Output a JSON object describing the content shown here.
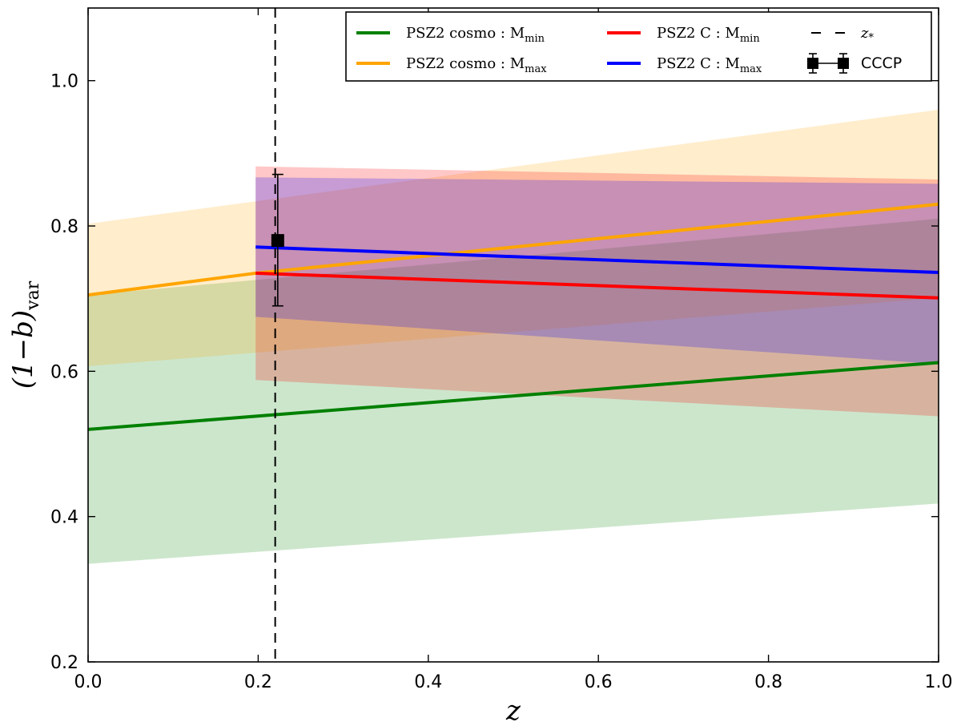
{
  "chart_data": {
    "type": "line",
    "title": "",
    "xlabel": "z",
    "ylabel": {
      "main": "(1−b)",
      "sub": "var"
    },
    "xlim": [
      0.0,
      1.0
    ],
    "ylim": [
      0.2,
      1.1
    ],
    "xticks": [
      0.0,
      0.2,
      0.4,
      0.6,
      0.8,
      1.0
    ],
    "xtick_labels": [
      "0.0",
      "0.2",
      "0.4",
      "0.6",
      "0.8",
      "1.0"
    ],
    "yticks": [
      0.2,
      0.4,
      0.6,
      0.8,
      1.0
    ],
    "ytick_labels": [
      "0.2",
      "0.4",
      "0.6",
      "0.8",
      "1.0"
    ],
    "grid": false,
    "bands": [
      {
        "name": "PSZ2 cosmo: M_min band",
        "color": "#008000",
        "opacity": 0.2,
        "x": [
          0.0,
          1.0
        ],
        "upper": [
          0.705,
          0.81
        ],
        "lower": [
          0.335,
          0.418
        ]
      },
      {
        "name": "PSZ2 cosmo: M_max band",
        "color": "#ffa500",
        "opacity": 0.2,
        "x": [
          0.0,
          1.0
        ],
        "upper": [
          0.803,
          0.96
        ],
        "lower": [
          0.607,
          0.701
        ]
      },
      {
        "name": "PSZ2 C: M_min band",
        "color": "#ff0000",
        "opacity": 0.22,
        "x": [
          0.197,
          1.0
        ],
        "upper": [
          0.882,
          0.864
        ],
        "lower": [
          0.588,
          0.538
        ]
      },
      {
        "name": "PSZ2 C: M_max band",
        "color": "#0000ff",
        "opacity": 0.22,
        "x": [
          0.197,
          1.0
        ],
        "upper": [
          0.867,
          0.858
        ],
        "lower": [
          0.675,
          0.61
        ]
      }
    ],
    "series": [
      {
        "name": "PSZ2 cosmo: M_min",
        "color": "#008000",
        "x": [
          0.0,
          1.0
        ],
        "y": [
          0.52,
          0.612
        ]
      },
      {
        "name": "PSZ2 cosmo: M_max",
        "color": "#ffa500",
        "x": [
          0.0,
          0.197,
          1.0
        ],
        "y": [
          0.705,
          0.735,
          0.83
        ]
      },
      {
        "name": "PSZ2 C: M_min",
        "color": "#ff0000",
        "x": [
          0.197,
          1.0
        ],
        "y": [
          0.735,
          0.701
        ]
      },
      {
        "name": "PSZ2 C: M_max",
        "color": "#0000ff",
        "x": [
          0.197,
          1.0
        ],
        "y": [
          0.771,
          0.736
        ]
      }
    ],
    "vline": {
      "name": "z_*",
      "x": 0.22,
      "color": "#000000",
      "style": "dashed"
    },
    "points": [
      {
        "name": "CCCP",
        "x": 0.223,
        "y": 0.78,
        "yerr_low": 0.69,
        "yerr_high": 0.871,
        "color": "#000000",
        "marker": "square"
      }
    ],
    "legend": {
      "position": "top-right",
      "entries": [
        {
          "label_main": "PSZ2 cosmo : M",
          "label_sub": "min",
          "color": "#008000",
          "kind": "line"
        },
        {
          "label_main": "PSZ2 cosmo : M",
          "label_sub": "max",
          "color": "#ffa500",
          "kind": "line"
        },
        {
          "label_main": "PSZ2 C : M",
          "label_sub": "min",
          "color": "#ff0000",
          "kind": "line"
        },
        {
          "label_main": "PSZ2 C : M",
          "label_sub": "max",
          "color": "#0000ff",
          "kind": "line"
        },
        {
          "label_main": "z",
          "label_sub": "*",
          "color": "#000000",
          "kind": "dashed"
        },
        {
          "label_main": "CCCP",
          "label_sub": "",
          "color": "#000000",
          "kind": "errorbar"
        }
      ]
    }
  }
}
